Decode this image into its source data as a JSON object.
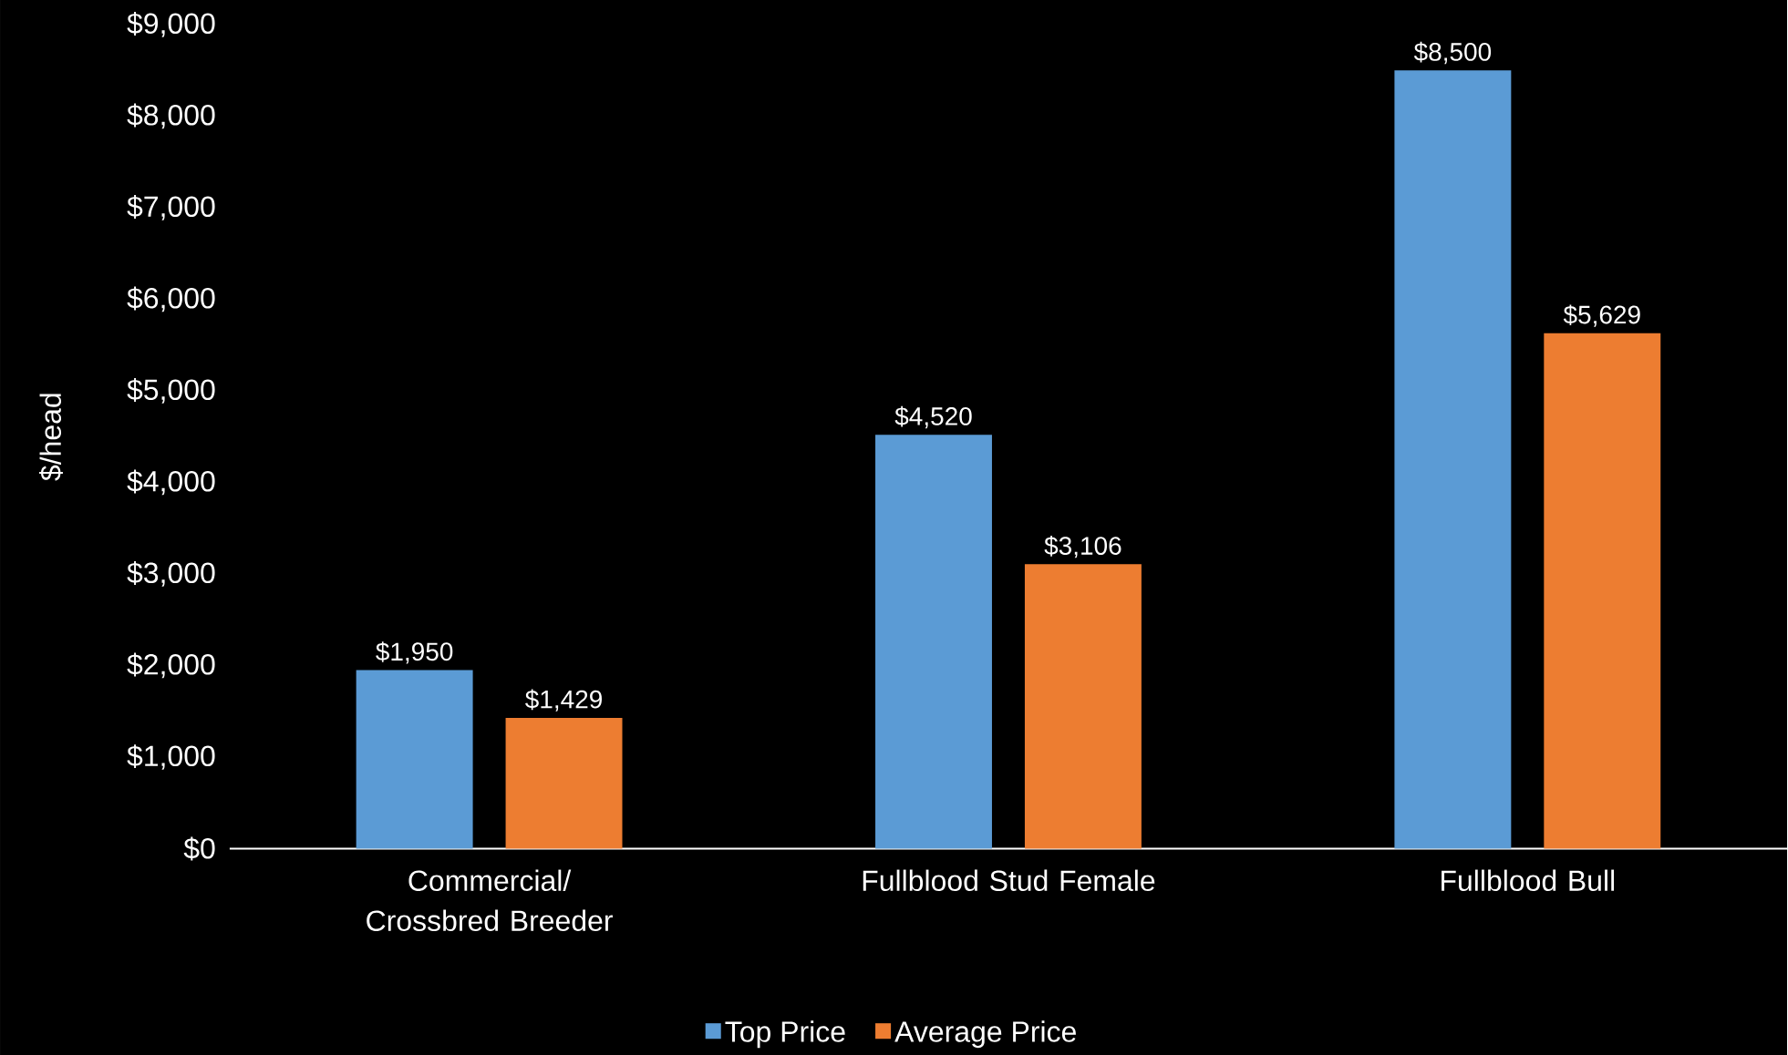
{
  "chart_data": {
    "type": "bar",
    "ylabel": "$/head",
    "categories": [
      "Commercial/ Crossbred Breeder",
      "Fullblood Stud Female",
      "Fullblood Bull"
    ],
    "series": [
      {
        "name": "Top Price",
        "color": "#5b9bd5",
        "values": [
          1950,
          4520,
          8500
        ],
        "value_labels": [
          "$1,950",
          "$4,520",
          "$8,500"
        ]
      },
      {
        "name": "Average Price",
        "color": "#ed7d31",
        "values": [
          1429,
          3106,
          5629
        ],
        "value_labels": [
          "$1,429",
          "$3,106",
          "$5,629"
        ]
      }
    ],
    "ylim": [
      0,
      9000
    ],
    "yticks": [
      {
        "value": 0,
        "label": "$0"
      },
      {
        "value": 1000,
        "label": "$1,000"
      },
      {
        "value": 2000,
        "label": "$2,000"
      },
      {
        "value": 3000,
        "label": "$3,000"
      },
      {
        "value": 4000,
        "label": "$4,000"
      },
      {
        "value": 5000,
        "label": "$5,000"
      },
      {
        "value": 6000,
        "label": "$6,000"
      },
      {
        "value": 7000,
        "label": "$7,000"
      },
      {
        "value": 8000,
        "label": "$8,000"
      },
      {
        "value": 9000,
        "label": "$9,000"
      }
    ],
    "legend": "bottom"
  }
}
